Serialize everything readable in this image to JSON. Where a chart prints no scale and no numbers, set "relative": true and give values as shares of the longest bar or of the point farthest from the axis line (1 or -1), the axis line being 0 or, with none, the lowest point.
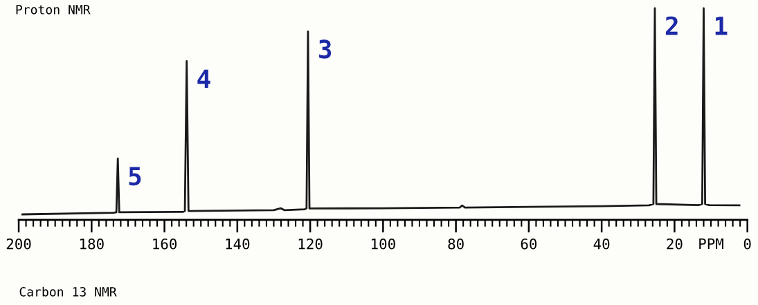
{
  "chart_data": {
    "type": "line",
    "title": "Proton NMR",
    "xlabel": "PPM",
    "relative": true,
    "xlim": [
      200,
      0
    ],
    "xticks": [
      200,
      180,
      160,
      140,
      120,
      100,
      80,
      60,
      40,
      20,
      0
    ],
    "tick_labels": "x",
    "grid": false,
    "legend": false,
    "marker": "none",
    "line_style": "solid",
    "series": [
      {
        "color": "#1a1a1a",
        "x": [
          199,
          174,
          173.2,
          172.8,
          172.4,
          155,
          154.4,
          153.9,
          153.4,
          130,
          128.1,
          127,
          121.5,
          121,
          120.6,
          120.2,
          100,
          79,
          78.3,
          77.5,
          40,
          27,
          25.8,
          25.4,
          25,
          13.5,
          12.4,
          12,
          11.6,
          10.5,
          2.2
        ],
        "values": [
          0.026,
          0.034,
          0.036,
          0.29,
          0.036,
          0.038,
          0.042,
          0.75,
          0.042,
          0.046,
          0.055,
          0.046,
          0.05,
          0.055,
          0.89,
          0.054,
          0.055,
          0.058,
          0.068,
          0.058,
          0.065,
          0.069,
          0.075,
          1.0,
          0.075,
          0.07,
          0.075,
          1.0,
          0.075,
          0.07,
          0.069
        ]
      }
    ],
    "annotations": [
      {
        "text": "5",
        "x": 172.8,
        "y": 0.29
      },
      {
        "text": "4",
        "x": 153.9,
        "y": 0.75
      },
      {
        "text": "3",
        "x": 120.6,
        "y": 0.89
      },
      {
        "text": "2",
        "x": 25.4,
        "y": 1.0
      },
      {
        "text": "1",
        "x": 12,
        "y": 1.0
      },
      "Carbon 13 NMR"
    ]
  }
}
